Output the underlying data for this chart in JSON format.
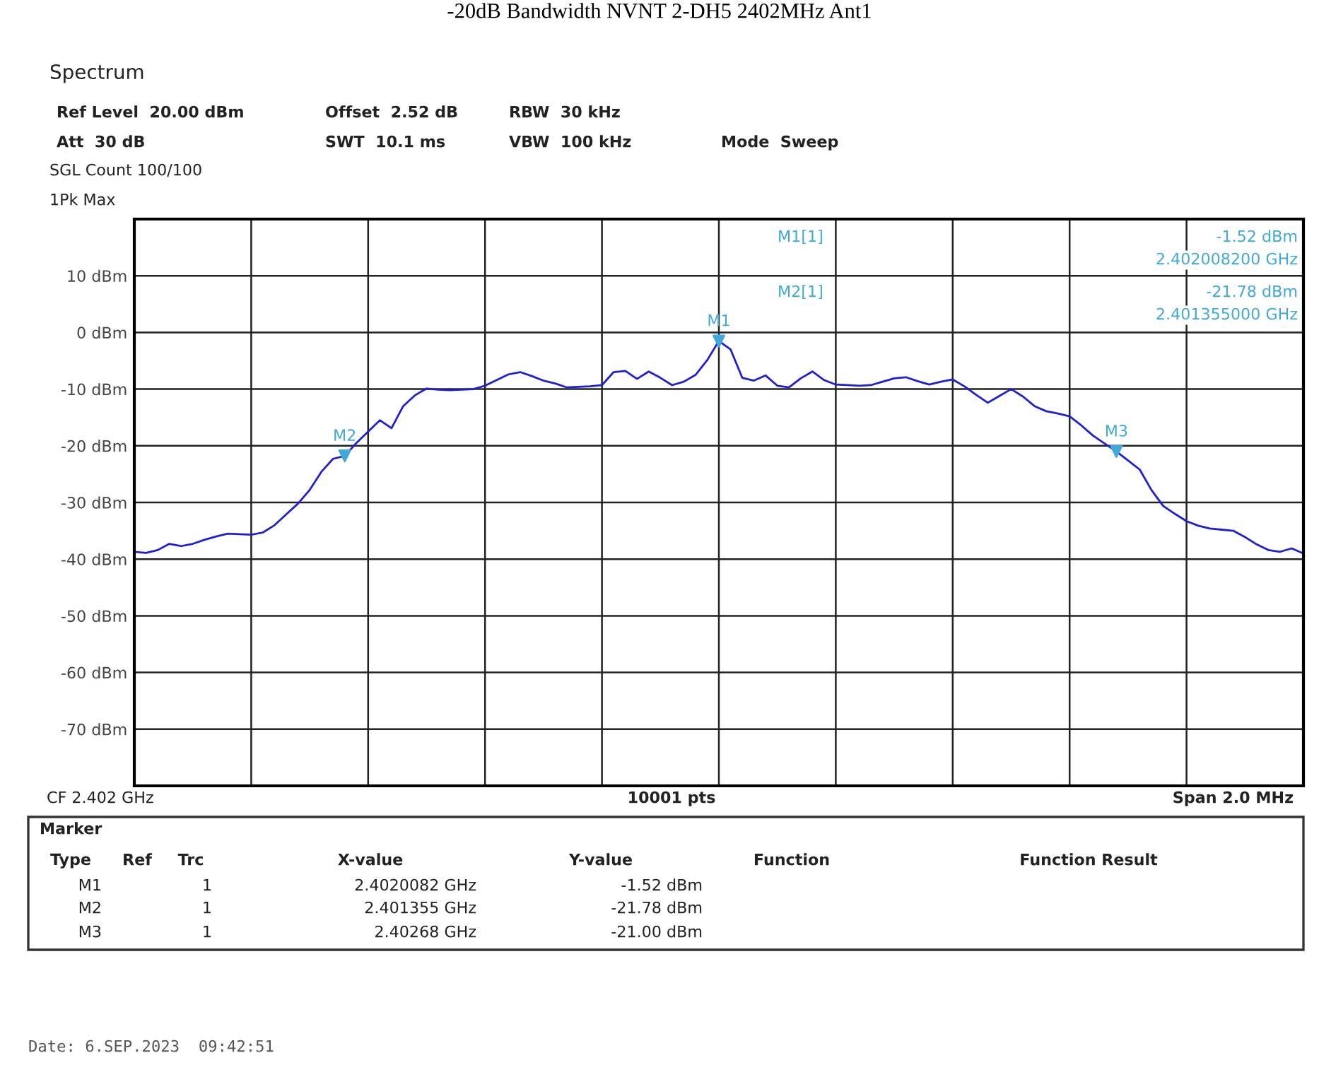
{
  "chart_data": {
    "type": "line",
    "title": "-20dB Bandwidth NVNT 2-DH5 2402MHz Ant1",
    "categories": [
      null,
      null,
      null,
      null,
      null,
      null,
      null,
      null,
      null,
      null,
      null,
      null,
      null,
      null,
      null,
      null,
      null,
      null,
      null,
      null,
      null,
      null,
      null,
      null,
      null,
      null,
      null,
      null,
      null,
      null,
      null,
      null,
      null,
      null,
      null,
      null,
      null,
      null,
      null,
      null,
      null,
      null,
      null,
      null,
      null,
      null,
      null,
      null,
      null,
      null,
      null,
      null,
      null,
      null,
      null,
      null,
      null,
      null,
      null,
      null,
      null,
      null,
      null,
      null,
      null,
      null,
      null,
      null,
      null,
      null,
      null,
      null,
      null,
      null,
      null,
      null,
      null,
      null,
      null,
      null,
      null,
      null,
      null,
      null,
      null,
      null,
      null,
      null,
      null,
      null,
      null,
      null,
      null,
      null,
      null,
      null,
      null,
      null,
      null,
      null,
      null
    ],
    "series": [
      {
        "color": "#1f1fd6",
        "values": [
          -38.7,
          -38.9,
          -38.4,
          -37.3,
          -37.7,
          -37.3,
          -36.6,
          -36,
          -35.5,
          -35.6,
          -35.7,
          -35.3,
          -34,
          -32.1,
          -30.2,
          -27.8,
          -24.6,
          -22.3,
          -21.78,
          -19.5,
          -17.5,
          -15.5,
          -16.9,
          -13,
          -11.1,
          -9.9,
          -10.1,
          -10.2,
          -10.1,
          -10,
          -9.4,
          -8.4,
          -7.4,
          -7,
          -7.7,
          -8.5,
          -9,
          -9.7,
          -9.6,
          -9.5,
          -9.3,
          -7,
          -6.8,
          -8.2,
          -6.9,
          -8,
          -9.3,
          -8.7,
          -7.5,
          -4.9,
          -1.52,
          -3,
          -8,
          -8.5,
          -7.6,
          -9.4,
          -9.7,
          -8.1,
          -6.9,
          -8.4,
          -9.2,
          -9.3,
          -9.4,
          -9.3,
          -8.7,
          -8.1,
          -7.9,
          -8.6,
          -9.2,
          -8.7,
          -8.3,
          -9.5,
          -11,
          -12.4,
          -11.2,
          -10,
          -11.3,
          -13,
          -13.9,
          -14.3,
          -14.8,
          -16.4,
          -18.2,
          -19.6,
          -21,
          -22.6,
          -24.2,
          -27.8,
          -30.6,
          -32,
          -33.3,
          -34.1,
          -34.6,
          -34.8,
          -35,
          -36.1,
          -37.4,
          -38.4,
          -38.7,
          -38.1,
          -39
        ]
      },
      {
        "type": "scatter",
        "color": "#3fa9d8",
        "values": [
          null,
          null,
          null,
          null,
          null,
          null,
          null,
          null,
          null,
          null,
          null,
          null,
          null,
          null,
          null,
          null,
          null,
          null,
          -21.78,
          null,
          null,
          null,
          null,
          null,
          null,
          null,
          null,
          null,
          null,
          null,
          null,
          null,
          null,
          null,
          null,
          null,
          null,
          null,
          null,
          null,
          null,
          null,
          null,
          null,
          null,
          null,
          null,
          null,
          null,
          null,
          -1.52,
          null,
          null,
          null,
          null,
          null,
          null,
          null,
          null,
          null,
          null,
          null,
          null,
          null,
          null,
          null,
          null,
          null,
          null,
          null,
          null,
          null,
          null,
          null,
          null,
          null,
          null,
          null,
          null,
          null,
          null,
          null,
          null,
          null,
          -21.0,
          null,
          null,
          null,
          null,
          null,
          null,
          null,
          null,
          null,
          null,
          null,
          null,
          null,
          null,
          null,
          null
        ],
        "value_labels": [
          null,
          null,
          null,
          null,
          null,
          null,
          null,
          null,
          null,
          null,
          null,
          null,
          null,
          null,
          null,
          null,
          null,
          null,
          "M2",
          null,
          null,
          null,
          null,
          null,
          null,
          null,
          null,
          null,
          null,
          null,
          null,
          null,
          null,
          null,
          null,
          null,
          null,
          null,
          null,
          null,
          null,
          null,
          null,
          null,
          null,
          null,
          null,
          null,
          null,
          null,
          "M1",
          null,
          null,
          null,
          null,
          null,
          null,
          null,
          null,
          null,
          null,
          null,
          null,
          null,
          null,
          null,
          null,
          null,
          null,
          null,
          null,
          null,
          null,
          null,
          null,
          null,
          null,
          null,
          null,
          null,
          null,
          null,
          null,
          null,
          "M3",
          null,
          null,
          null,
          null,
          null,
          null,
          null,
          null,
          null,
          null,
          null,
          null,
          null,
          null,
          null,
          null
        ]
      }
    ],
    "ylim": [
      -80,
      20
    ],
    "yticks": [
      {
        "value": 20,
        "label": null
      },
      {
        "value": 10,
        "label": "10 dBm"
      },
      {
        "value": 0,
        "label": "0 dBm"
      },
      {
        "value": -10,
        "label": "-10 dBm"
      },
      {
        "value": -20,
        "label": "-20 dBm"
      },
      {
        "value": -30,
        "label": "-30 dBm"
      },
      {
        "value": -40,
        "label": "-40 dBm"
      },
      {
        "value": -50,
        "label": "-50 dBm"
      },
      {
        "value": -60,
        "label": "-60 dBm"
      },
      {
        "value": -70,
        "label": "-70 dBm"
      },
      {
        "value": -80,
        "label": null
      }
    ],
    "grid": true,
    "line_style": "solid",
    "annotations": [
      "Spectrum",
      "Ref Level  20.00 dBm",
      "Offset  2.52 dB",
      "RBW  30 kHz",
      "Att  30 dB",
      "SWT  10.1 ms",
      "VBW  100 kHz",
      "Mode  Sweep",
      "SGL Count 100/100",
      "1Pk Max",
      "M1[1]",
      "-1.52 dBm",
      "2.402008200 GHz",
      "M2[1]",
      "-21.78 dBm",
      "2.401355000 GHz",
      "CF 2.402 GHz",
      "10001 pts",
      "Span 2.0 MHz",
      "Marker",
      "Type",
      "Ref",
      "Trc",
      "X-value",
      "Y-value",
      "Function",
      "Function Result",
      "M1",
      "1",
      "2.4020082 GHz",
      "-1.52 dBm",
      "M2",
      "1",
      "2.401355 GHz",
      "-21.78 dBm",
      "M3",
      "1",
      "2.40268 GHz",
      "-21.00 dBm",
      "Date: 6.SEP.2023  09:42:51"
    ]
  }
}
